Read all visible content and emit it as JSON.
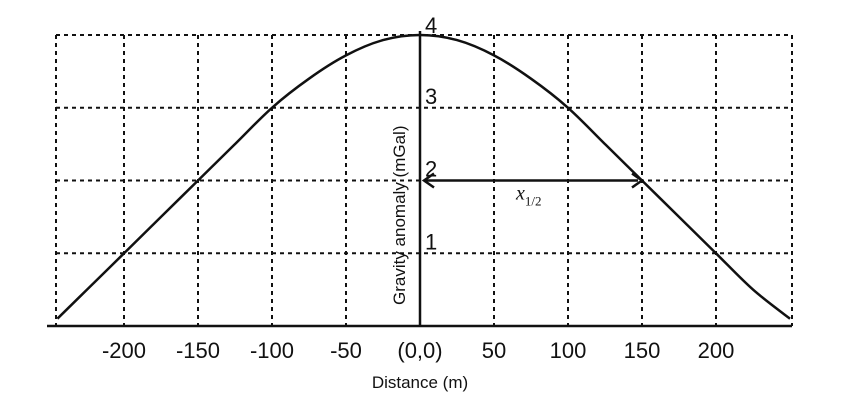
{
  "chart_data": {
    "type": "line",
    "title": "",
    "xlabel": "Distance (m)",
    "ylabel": "Gravity anomaly (mGal)",
    "xlim": [
      -245,
      250
    ],
    "ylim": [
      0,
      4
    ],
    "grid": true,
    "x_ticks": [
      -200,
      -150,
      -100,
      -50,
      0,
      50,
      100,
      150,
      200
    ],
    "x_tick_labels": [
      "-200",
      "-150",
      "-100",
      "-50",
      "(0,0)",
      "50",
      "100",
      "150",
      "200"
    ],
    "y_ticks": [
      1,
      2,
      3,
      4
    ],
    "y_tick_labels": [
      "1",
      "2",
      "3",
      "4"
    ],
    "series": [
      {
        "x": [
          -245,
          -225,
          -200,
          -175,
          -150,
          -125,
          -100,
          -75,
          -50,
          -25,
          0,
          25,
          50,
          75,
          100,
          125,
          150,
          175,
          200,
          225,
          250
        ],
        "values": [
          0.1,
          0.5,
          1.0,
          1.5,
          2.0,
          2.5,
          3.0,
          3.4,
          3.72,
          3.93,
          4.0,
          3.93,
          3.72,
          3.4,
          3.0,
          2.5,
          2.0,
          1.5,
          1.0,
          0.5,
          0.1
        ]
      }
    ],
    "annotations": [
      {
        "text": "x",
        "subscript": "1/2",
        "from": [
          0,
          2
        ],
        "to": [
          150,
          2
        ]
      }
    ]
  }
}
